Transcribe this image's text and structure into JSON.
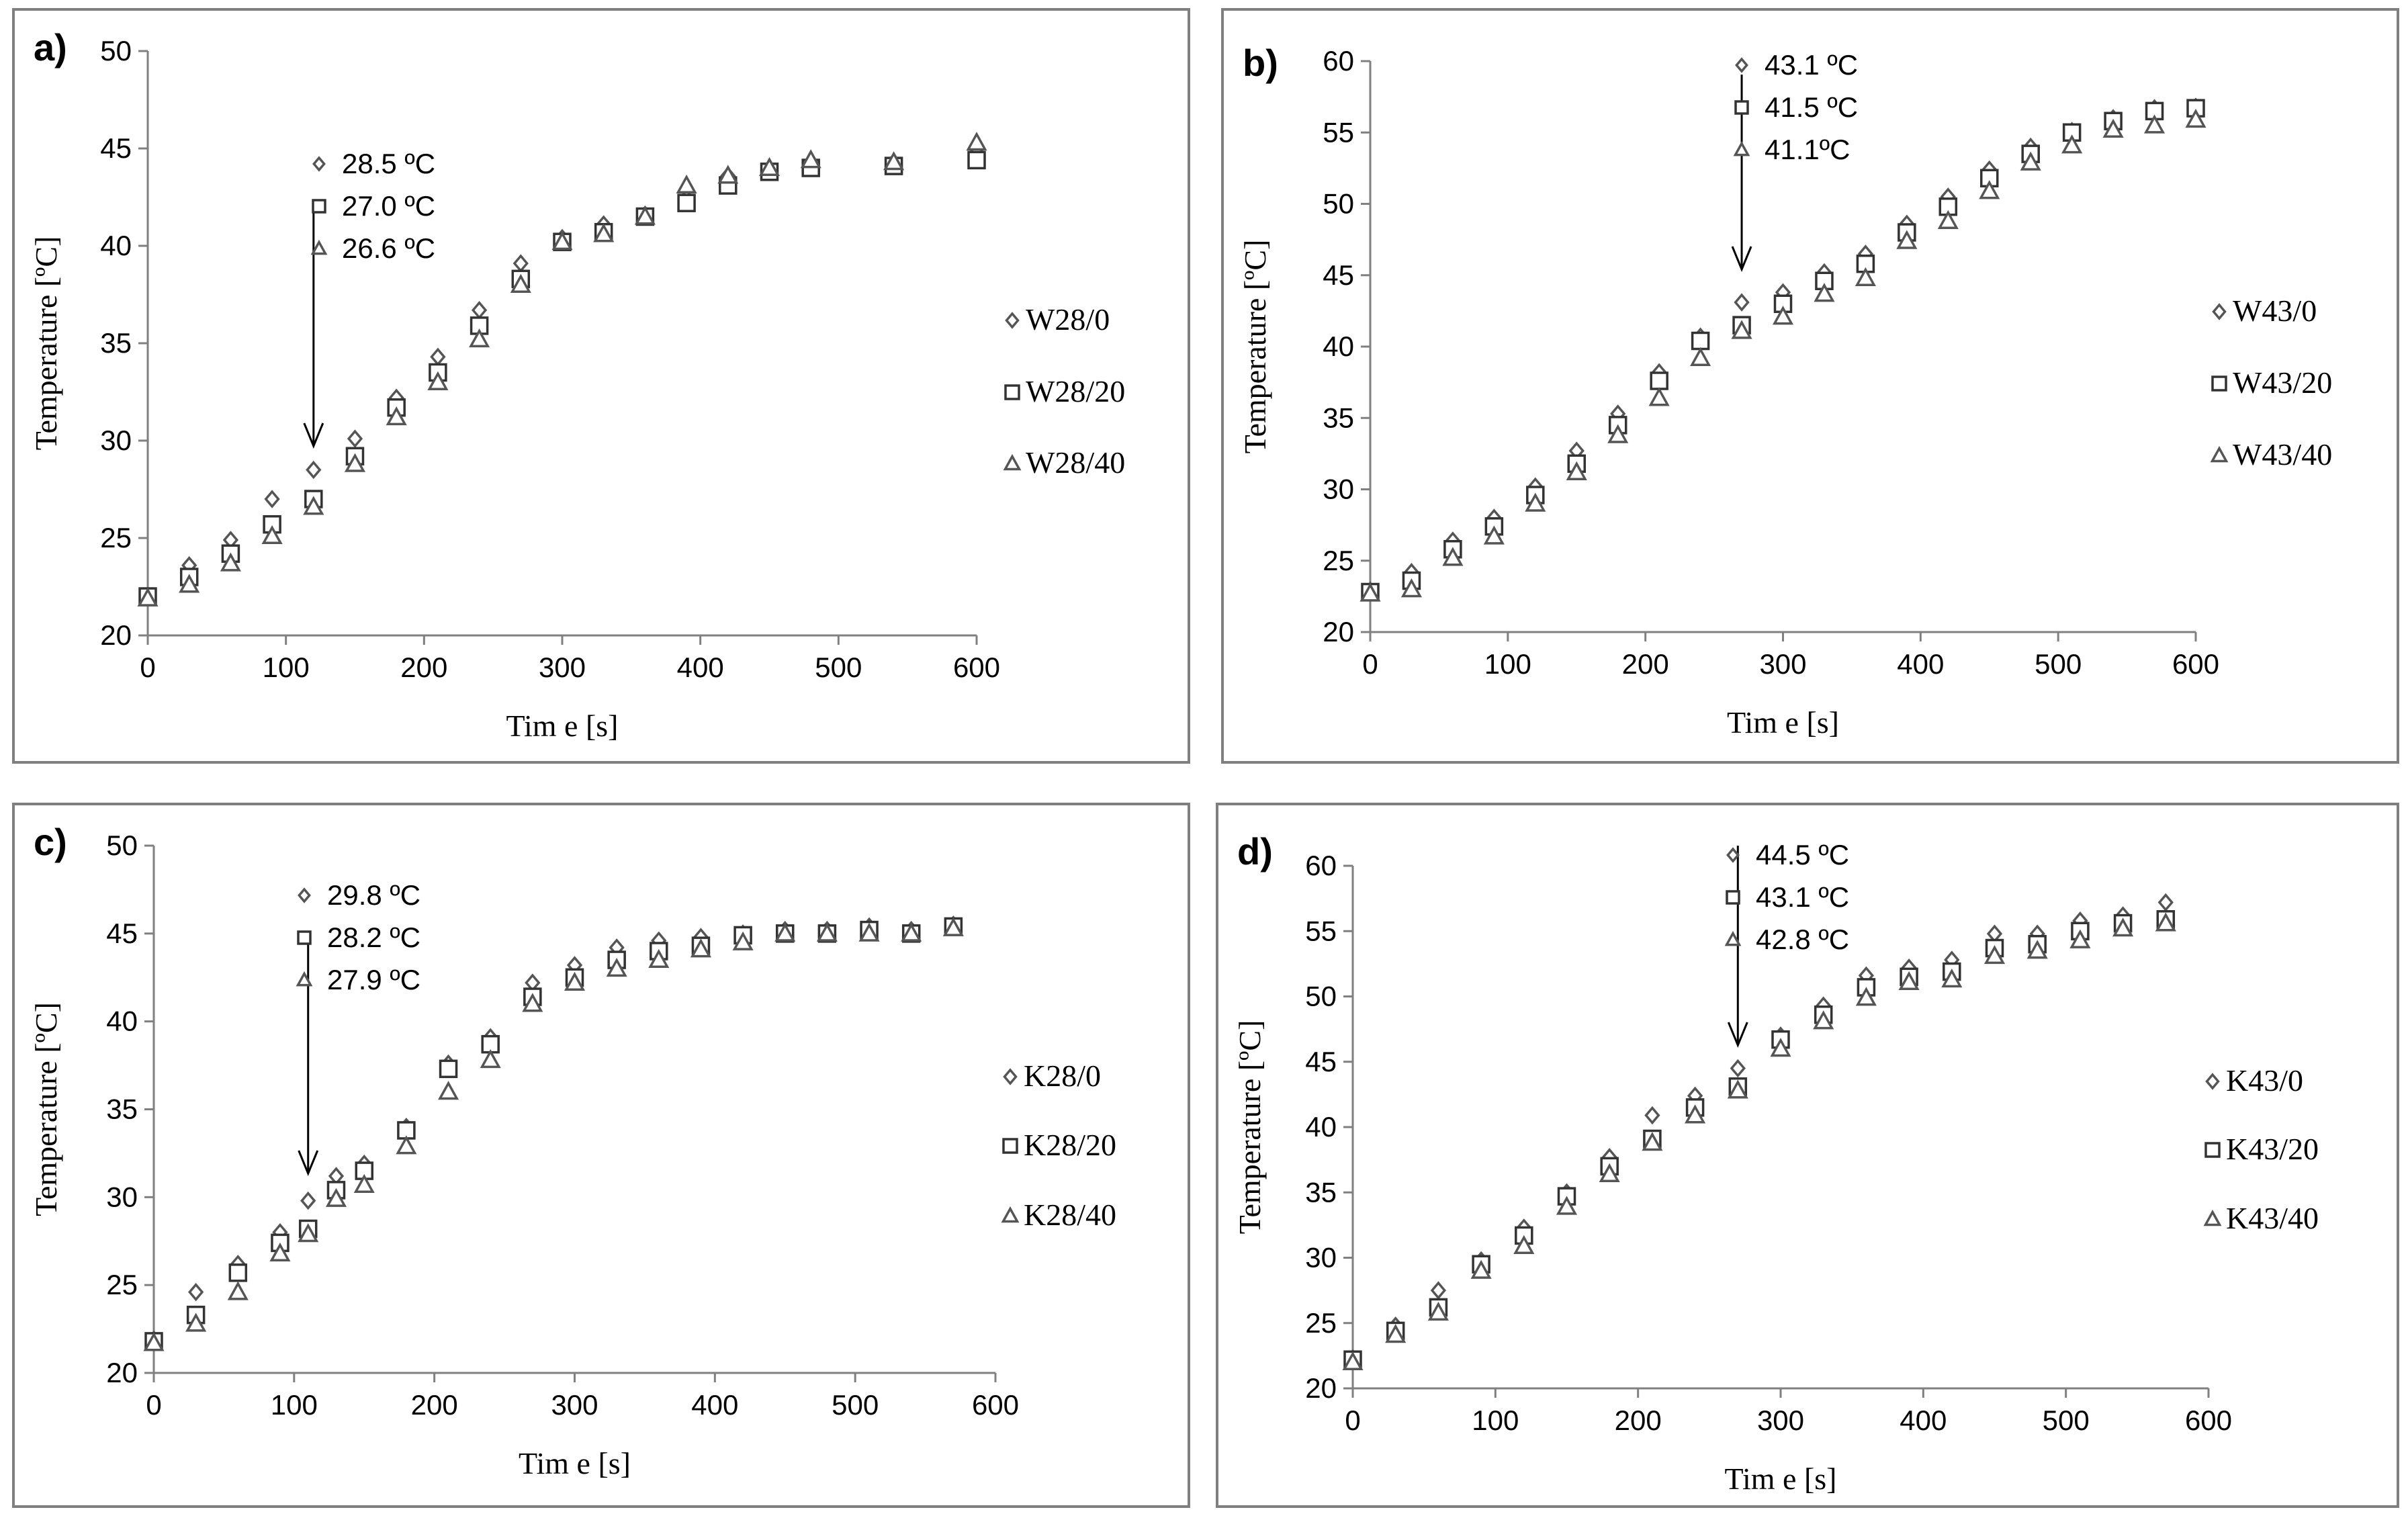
{
  "chart_data": [
    {
      "type": "scatter",
      "panel_label": "a)",
      "xlabel": "Tim e [s]",
      "ylabel": "Temperature [ºC]",
      "xlim": [
        0,
        600
      ],
      "ylim": [
        20,
        50
      ],
      "xticks": [
        "0",
        "100",
        "200",
        "300",
        "400",
        "500",
        "600"
      ],
      "yticks": [
        "20",
        "25",
        "30",
        "35",
        "40",
        "45",
        "50"
      ],
      "annotation": {
        "x": 120,
        "texts": [
          "28.5 ºC",
          "27.0 ºC",
          "26.6 ºC"
        ]
      },
      "series": [
        {
          "name": "W28/0",
          "marker": "diamond",
          "x": [
            0,
            30,
            60,
            90,
            120,
            150,
            180,
            210,
            240,
            270,
            300,
            330,
            360,
            390,
            420,
            450,
            480,
            540,
            600
          ],
          "y": [
            22.0,
            23.6,
            24.9,
            27.0,
            28.5,
            30.1,
            32.2,
            34.3,
            36.7,
            39.1,
            40.4,
            41.1,
            41.6,
            42.9,
            43.6,
            43.8,
            44.2,
            44.3,
            44.8
          ]
        },
        {
          "name": "W28/20",
          "marker": "square",
          "x": [
            0,
            30,
            60,
            90,
            120,
            150,
            180,
            210,
            240,
            270,
            300,
            330,
            360,
            390,
            420,
            450,
            480,
            540,
            600
          ],
          "y": [
            22.0,
            23.0,
            24.2,
            25.7,
            27.0,
            29.2,
            31.7,
            33.5,
            35.9,
            38.3,
            40.2,
            40.7,
            41.5,
            42.2,
            43.1,
            43.8,
            44.0,
            44.1,
            44.4
          ]
        },
        {
          "name": "W28/40",
          "marker": "triangle",
          "x": [
            0,
            30,
            60,
            90,
            120,
            150,
            180,
            210,
            240,
            270,
            300,
            330,
            360,
            390,
            420,
            450,
            480,
            540,
            600
          ],
          "y": [
            21.9,
            22.6,
            23.7,
            25.1,
            26.6,
            28.8,
            31.2,
            33.0,
            35.2,
            38.0,
            40.2,
            40.6,
            41.5,
            43.1,
            43.6,
            44.0,
            44.4,
            44.3,
            45.3
          ]
        }
      ]
    },
    {
      "type": "scatter",
      "panel_label": "b)",
      "xlabel": "Tim e [s]",
      "ylabel": "Temperature [ºC]",
      "xlim": [
        0,
        600
      ],
      "ylim": [
        20,
        60
      ],
      "xticks": [
        "0",
        "100",
        "200",
        "300",
        "400",
        "500",
        "600"
      ],
      "yticks": [
        "20",
        "25",
        "30",
        "35",
        "40",
        "45",
        "50",
        "55",
        "60"
      ],
      "annotation": {
        "x": 270,
        "texts": [
          "43.1 ºC",
          "41.5 ºC",
          "41.1ºC"
        ]
      },
      "series": [
        {
          "name": "W43/0",
          "marker": "diamond",
          "x": [
            0,
            30,
            60,
            90,
            120,
            150,
            180,
            210,
            240,
            270,
            300,
            330,
            360,
            390,
            420,
            450,
            480,
            510,
            540,
            570,
            600
          ],
          "y": [
            22.9,
            24.2,
            26.4,
            28.0,
            30.2,
            32.7,
            35.3,
            38.2,
            40.7,
            43.1,
            43.8,
            45.2,
            46.5,
            48.6,
            50.5,
            52.4,
            54.0,
            55.1,
            56.0,
            56.7,
            56.8
          ]
        },
        {
          "name": "W43/20",
          "marker": "square",
          "x": [
            0,
            30,
            60,
            90,
            120,
            150,
            180,
            210,
            240,
            270,
            300,
            330,
            360,
            390,
            420,
            450,
            480,
            510,
            540,
            570,
            600
          ],
          "y": [
            22.8,
            23.6,
            25.8,
            27.4,
            29.6,
            31.8,
            34.5,
            37.6,
            40.4,
            41.5,
            43.0,
            44.6,
            45.8,
            48.0,
            49.8,
            51.8,
            53.5,
            55.0,
            55.8,
            56.5,
            56.7
          ]
        },
        {
          "name": "W43/40",
          "marker": "triangle",
          "x": [
            0,
            30,
            60,
            90,
            120,
            150,
            180,
            210,
            240,
            270,
            300,
            330,
            360,
            390,
            420,
            450,
            480,
            510,
            540,
            570,
            600
          ],
          "y": [
            22.7,
            23.0,
            25.2,
            26.7,
            29.0,
            31.2,
            33.8,
            36.4,
            39.2,
            41.1,
            42.1,
            43.7,
            44.8,
            47.4,
            48.8,
            50.9,
            52.9,
            54.1,
            55.2,
            55.5,
            55.9
          ]
        }
      ]
    },
    {
      "type": "scatter",
      "panel_label": "c)",
      "xlabel": "Tim e [s]",
      "ylabel": "Temperature [ºC]",
      "xlim": [
        0,
        600
      ],
      "ylim": [
        20,
        50
      ],
      "xticks": [
        "0",
        "100",
        "200",
        "300",
        "400",
        "500",
        "600"
      ],
      "yticks": [
        "20",
        "25",
        "30",
        "35",
        "40",
        "45",
        "50"
      ],
      "annotation": {
        "x": 110,
        "texts": [
          "29.8 ºC",
          "28.2 ºC",
          "27.9 ºC"
        ]
      },
      "series": [
        {
          "name": "K28/0",
          "marker": "diamond",
          "x": [
            0,
            30,
            60,
            90,
            110,
            130,
            150,
            180,
            210,
            240,
            270,
            300,
            330,
            360,
            390,
            420,
            450,
            480,
            510,
            540,
            570
          ],
          "y": [
            21.9,
            24.6,
            26.2,
            28.0,
            29.8,
            31.2,
            31.9,
            34.0,
            37.6,
            39.1,
            42.2,
            43.2,
            44.2,
            44.6,
            44.8,
            45.0,
            45.2,
            45.2,
            45.4,
            45.2,
            45.5
          ]
        },
        {
          "name": "K28/20",
          "marker": "square",
          "x": [
            0,
            30,
            60,
            90,
            110,
            130,
            150,
            180,
            210,
            240,
            270,
            300,
            330,
            360,
            390,
            420,
            450,
            480,
            510,
            540,
            570
          ],
          "y": [
            21.8,
            23.3,
            25.7,
            27.4,
            28.2,
            30.4,
            31.5,
            33.8,
            37.3,
            38.7,
            41.4,
            42.5,
            43.5,
            44.0,
            44.3,
            44.9,
            45.0,
            45.0,
            45.2,
            45.0,
            45.4
          ]
        },
        {
          "name": "K28/40",
          "marker": "triangle",
          "x": [
            0,
            30,
            60,
            90,
            110,
            130,
            150,
            180,
            210,
            240,
            270,
            300,
            330,
            360,
            390,
            420,
            450,
            480,
            510,
            540,
            570
          ],
          "y": [
            21.7,
            22.8,
            24.6,
            26.8,
            27.9,
            29.9,
            30.7,
            32.9,
            36.0,
            37.8,
            41.0,
            42.2,
            43.0,
            43.5,
            44.1,
            44.5,
            45.0,
            45.0,
            45.0,
            45.0,
            45.3
          ]
        }
      ]
    },
    {
      "type": "scatter",
      "panel_label": "d)",
      "xlabel": "Tim e [s]",
      "ylabel": "Temperature [ºC]",
      "xlim": [
        0,
        600
      ],
      "ylim": [
        20,
        60
      ],
      "xticks": [
        "0",
        "100",
        "200",
        "300",
        "400",
        "500",
        "600"
      ],
      "yticks": [
        "20",
        "25",
        "30",
        "35",
        "40",
        "45",
        "50",
        "55",
        "60"
      ],
      "annotation": {
        "x": 270,
        "texts": [
          "44.5 ºC",
          "43.1 ºC",
          "42.8 ºC"
        ]
      },
      "series": [
        {
          "name": "K43/0",
          "marker": "diamond",
          "x": [
            0,
            30,
            60,
            90,
            120,
            150,
            180,
            210,
            240,
            270,
            300,
            330,
            360,
            390,
            420,
            450,
            480,
            510,
            540,
            570
          ],
          "y": [
            22.3,
            24.8,
            27.5,
            29.8,
            32.3,
            35.0,
            37.7,
            40.9,
            42.4,
            44.5,
            47.0,
            49.3,
            51.6,
            52.2,
            52.8,
            54.8,
            54.8,
            55.8,
            56.2,
            57.2
          ]
        },
        {
          "name": "K43/20",
          "marker": "square",
          "x": [
            0,
            30,
            60,
            90,
            120,
            150,
            180,
            210,
            240,
            270,
            300,
            330,
            360,
            390,
            420,
            450,
            480,
            510,
            540,
            570
          ],
          "y": [
            22.2,
            24.4,
            26.2,
            29.5,
            31.7,
            34.7,
            37.0,
            39.1,
            41.5,
            43.1,
            46.7,
            48.6,
            50.7,
            51.5,
            51.9,
            53.7,
            54.0,
            55.0,
            55.6,
            55.9
          ]
        },
        {
          "name": "K43/40",
          "marker": "triangle",
          "x": [
            0,
            30,
            60,
            90,
            120,
            150,
            180,
            210,
            240,
            270,
            300,
            330,
            360,
            390,
            420,
            450,
            480,
            510,
            540,
            570
          ],
          "y": [
            22.0,
            24.1,
            25.8,
            29.0,
            30.9,
            33.9,
            36.4,
            38.8,
            40.9,
            42.8,
            46.0,
            48.1,
            49.9,
            51.1,
            51.3,
            53.1,
            53.5,
            54.3,
            55.2,
            55.6
          ]
        }
      ]
    }
  ]
}
